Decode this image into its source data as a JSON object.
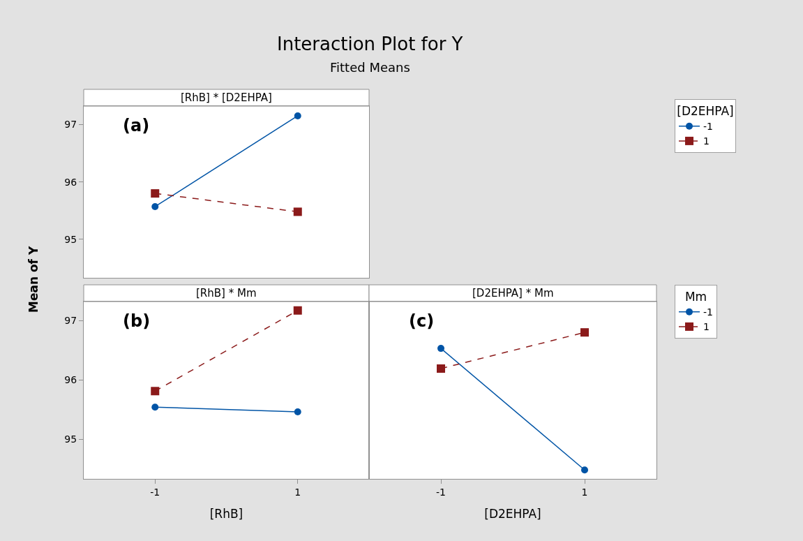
{
  "chart_data": [
    {
      "type": "line",
      "title": "[RhB] * [D2EHPA]",
      "ylabel": "Mean of Y",
      "legend_title": "[D2EHPA]",
      "legend": "top right",
      "tick_labels": "y",
      "annotations": [
        "Interaction Plot for Y",
        "Fitted Means",
        "(a)"
      ],
      "categories": [
        "-1",
        "1"
      ],
      "ylim": [
        94.33,
        97.32
      ],
      "yticks": [
        95,
        96,
        97
      ],
      "series": [
        {
          "name": "-1",
          "color": "#0054a6",
          "marker": "circle",
          "line_style": "solid",
          "values": [
            95.57,
            97.15
          ]
        },
        {
          "name": "1",
          "color": "#8b1a1a",
          "marker": "square",
          "line_style": "dashed",
          "values": [
            95.8,
            95.48
          ]
        }
      ]
    },
    {
      "type": "line",
      "title": "[RhB] * Mm",
      "xlabel": "[RhB]",
      "legend": "right",
      "annotations": [
        "(b)"
      ],
      "categories": [
        "-1",
        "1"
      ],
      "ylim": [
        94.33,
        97.32
      ],
      "yticks": [
        95,
        96,
        97
      ],
      "series": [
        {
          "name": "-1",
          "color": "#0054a6",
          "marker": "circle",
          "line_style": "solid",
          "values": [
            95.54,
            95.46
          ]
        },
        {
          "name": "1",
          "color": "#8b1a1a",
          "marker": "square",
          "line_style": "dashed",
          "values": [
            95.81,
            97.17
          ]
        }
      ]
    },
    {
      "type": "line",
      "title": "[D2EHPA] * Mm",
      "xlabel": "[D2EHPA]",
      "legend_title": "Mm",
      "legend": "right",
      "tick_labels": "x",
      "annotations": [
        "(c)"
      ],
      "categories": [
        "-1",
        "1"
      ],
      "ylim": [
        94.33,
        97.32
      ],
      "series": [
        {
          "name": "-1",
          "color": "#0054a6",
          "marker": "circle",
          "line_style": "solid",
          "values": [
            96.53,
            94.48
          ]
        },
        {
          "name": "1",
          "color": "#8b1a1a",
          "marker": "square",
          "line_style": "dashed",
          "values": [
            96.19,
            96.8
          ]
        }
      ]
    }
  ]
}
